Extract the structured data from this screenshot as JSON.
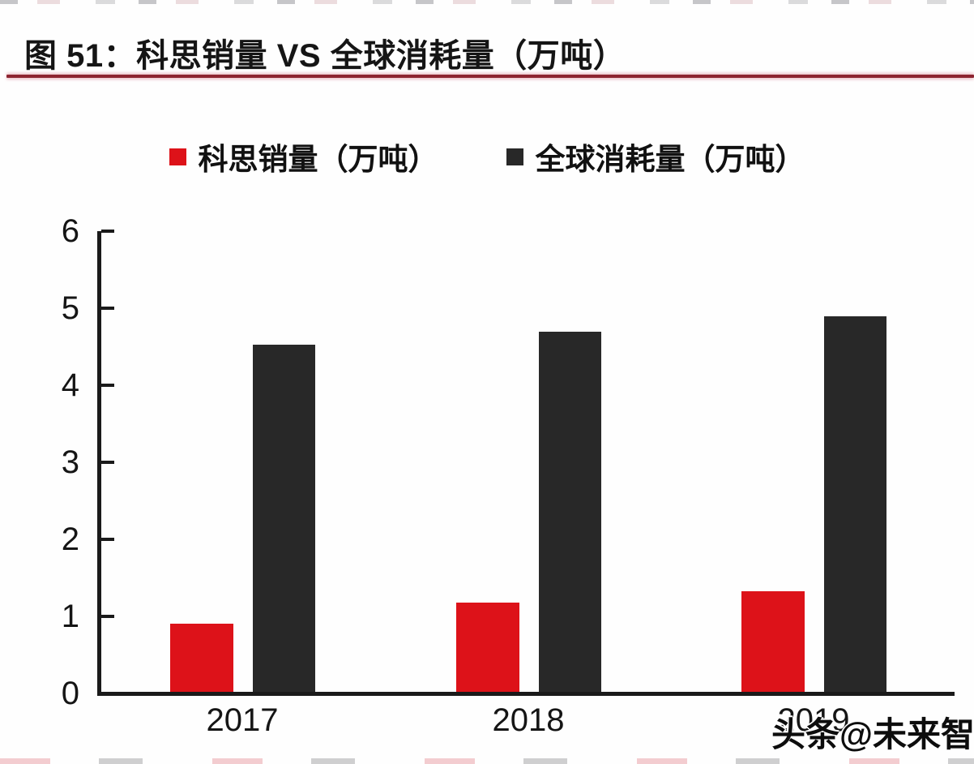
{
  "page": {
    "title": "图 51：科思销量 VS 全球消耗量（万吨）",
    "watermark": "头条@未来智库"
  },
  "colors": {
    "series1_red": "#dd1219",
    "series2_dark": "#282828",
    "title_rule": "#8e2531",
    "axis": "#1a1a1a"
  },
  "chart_data": {
    "type": "bar",
    "title": "图 51：科思销量 VS 全球消耗量（万吨）",
    "categories": [
      "2017",
      "2018",
      "2019"
    ],
    "series": [
      {
        "name": "科思销量（万吨）",
        "color": "#dd1219",
        "values": [
          0.93,
          1.2,
          1.35
        ]
      },
      {
        "name": "全球消耗量（万吨）",
        "color": "#282828",
        "values": [
          4.55,
          4.72,
          4.92
        ]
      }
    ],
    "xlabel": "",
    "ylabel": "",
    "ylim": [
      0,
      6
    ],
    "yticks": [
      0,
      1,
      2,
      3,
      4,
      5,
      6
    ],
    "grid": false,
    "legend_position": "top-center"
  }
}
